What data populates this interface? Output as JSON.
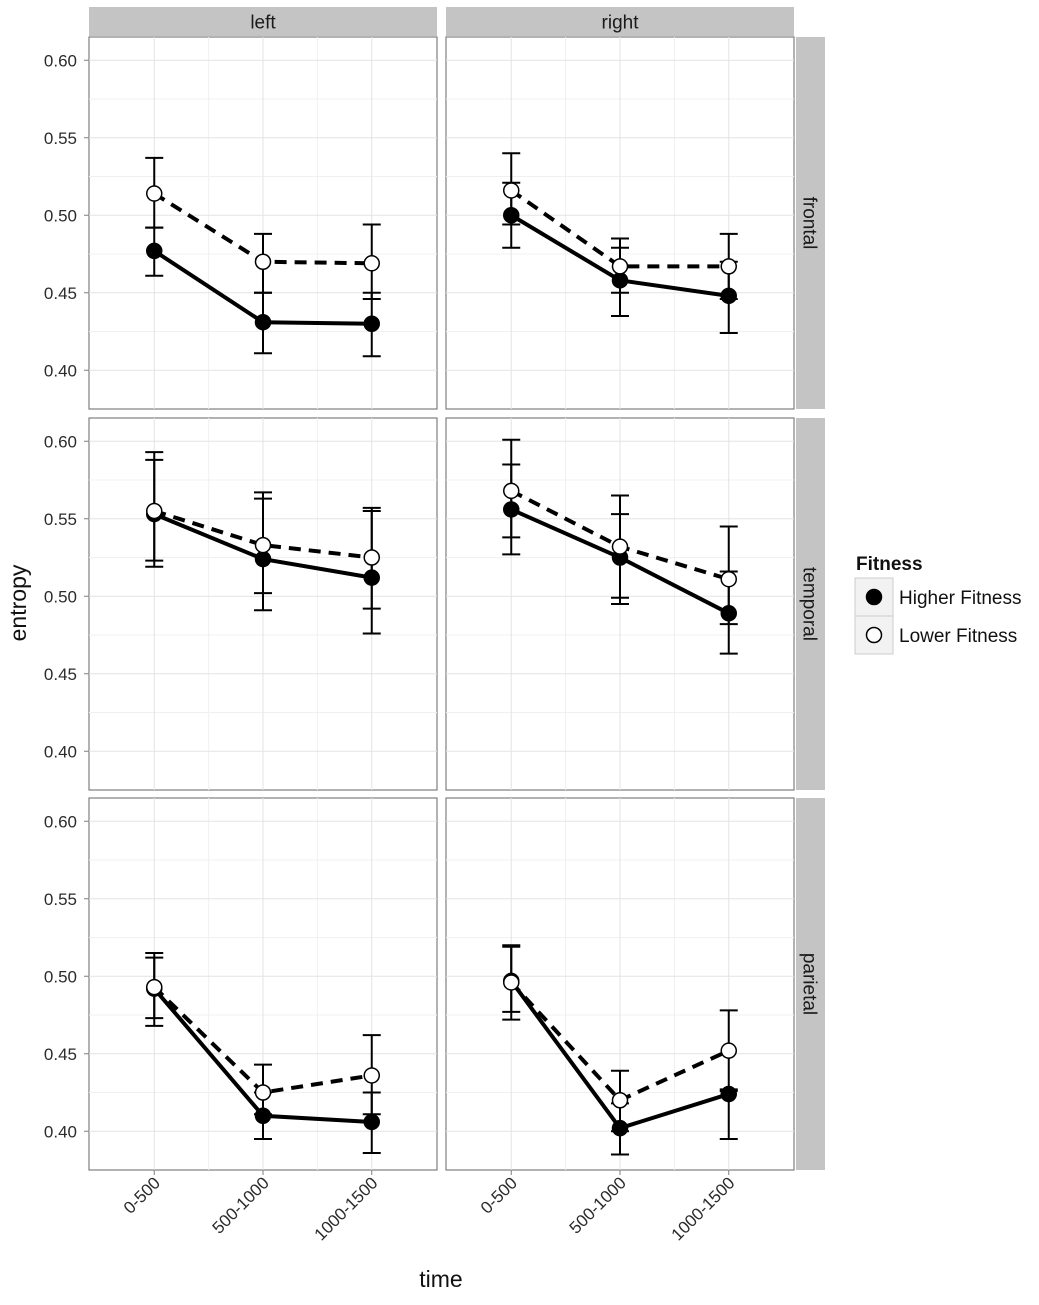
{
  "chart_data": {
    "type": "line",
    "facet_columns": [
      "left",
      "right"
    ],
    "facet_rows": [
      "frontal",
      "temporal",
      "parietal"
    ],
    "categories": [
      "0-500",
      "500-1000",
      "1000-1500"
    ],
    "xlabel": "time",
    "ylabel": "entropy",
    "ylim": [
      0.375,
      0.615
    ],
    "yticks": [
      "0.40",
      "0.45",
      "0.50",
      "0.55",
      "0.60"
    ],
    "grid": true,
    "legend": {
      "title": "Fitness",
      "position": "right",
      "entries": [
        "Higher Fitness",
        "Lower Fitness"
      ]
    },
    "series_style": {
      "Higher Fitness": {
        "line": "solid",
        "marker": "filled-circle",
        "color": "#000000"
      },
      "Lower Fitness": {
        "line": "dashed",
        "marker": "open-circle",
        "color": "#000000"
      }
    },
    "panels": [
      {
        "row": "frontal",
        "col": "left",
        "series": [
          {
            "name": "Higher Fitness",
            "values": [
              0.477,
              0.431,
              0.43
            ],
            "err_low": [
              0.461,
              0.411,
              0.409
            ],
            "err_high": [
              0.492,
              0.45,
              0.45
            ]
          },
          {
            "name": "Lower Fitness",
            "values": [
              0.514,
              0.47,
              0.469
            ],
            "err_low": [
              0.492,
              0.45,
              0.446
            ],
            "err_high": [
              0.537,
              0.488,
              0.494
            ]
          }
        ]
      },
      {
        "row": "frontal",
        "col": "right",
        "series": [
          {
            "name": "Higher Fitness",
            "values": [
              0.5,
              0.458,
              0.448
            ],
            "err_low": [
              0.479,
              0.435,
              0.424
            ],
            "err_high": [
              0.521,
              0.479,
              0.47
            ]
          },
          {
            "name": "Lower Fitness",
            "values": [
              0.516,
              0.467,
              0.467
            ],
            "err_low": [
              0.494,
              0.45,
              0.446
            ],
            "err_high": [
              0.54,
              0.485,
              0.488
            ]
          }
        ]
      },
      {
        "row": "temporal",
        "col": "left",
        "series": [
          {
            "name": "Higher Fitness",
            "values": [
              0.553,
              0.524,
              0.512
            ],
            "err_low": [
              0.519,
              0.491,
              0.476
            ],
            "err_high": [
              0.588,
              0.563,
              0.555
            ]
          },
          {
            "name": "Lower Fitness",
            "values": [
              0.555,
              0.533,
              0.525
            ],
            "err_low": [
              0.523,
              0.502,
              0.492
            ],
            "err_high": [
              0.593,
              0.567,
              0.557
            ]
          }
        ]
      },
      {
        "row": "temporal",
        "col": "right",
        "series": [
          {
            "name": "Higher Fitness",
            "values": [
              0.556,
              0.525,
              0.489
            ],
            "err_low": [
              0.527,
              0.495,
              0.463
            ],
            "err_high": [
              0.585,
              0.553,
              0.516
            ]
          },
          {
            "name": "Lower Fitness",
            "values": [
              0.568,
              0.532,
              0.511
            ],
            "err_low": [
              0.538,
              0.499,
              0.482
            ],
            "err_high": [
              0.601,
              0.565,
              0.545
            ]
          }
        ]
      },
      {
        "row": "parietal",
        "col": "left",
        "series": [
          {
            "name": "Higher Fitness",
            "values": [
              0.492,
              0.41,
              0.406
            ],
            "err_low": [
              0.468,
              0.395,
              0.386
            ],
            "err_high": [
              0.515,
              0.425,
              0.425
            ]
          },
          {
            "name": "Lower Fitness",
            "values": [
              0.493,
              0.425,
              0.436
            ],
            "err_low": [
              0.473,
              0.411,
              0.411
            ],
            "err_high": [
              0.512,
              0.443,
              0.462
            ]
          }
        ]
      },
      {
        "row": "parietal",
        "col": "right",
        "series": [
          {
            "name": "Higher Fitness",
            "values": [
              0.497,
              0.402,
              0.424
            ],
            "err_low": [
              0.472,
              0.385,
              0.395
            ],
            "err_high": [
              0.519,
              0.418,
              0.427
            ]
          },
          {
            "name": "Lower Fitness",
            "values": [
              0.496,
              0.42,
              0.452
            ],
            "err_low": [
              0.477,
              0.4,
              0.426
            ],
            "err_high": [
              0.52,
              0.439,
              0.478
            ]
          }
        ]
      }
    ]
  }
}
